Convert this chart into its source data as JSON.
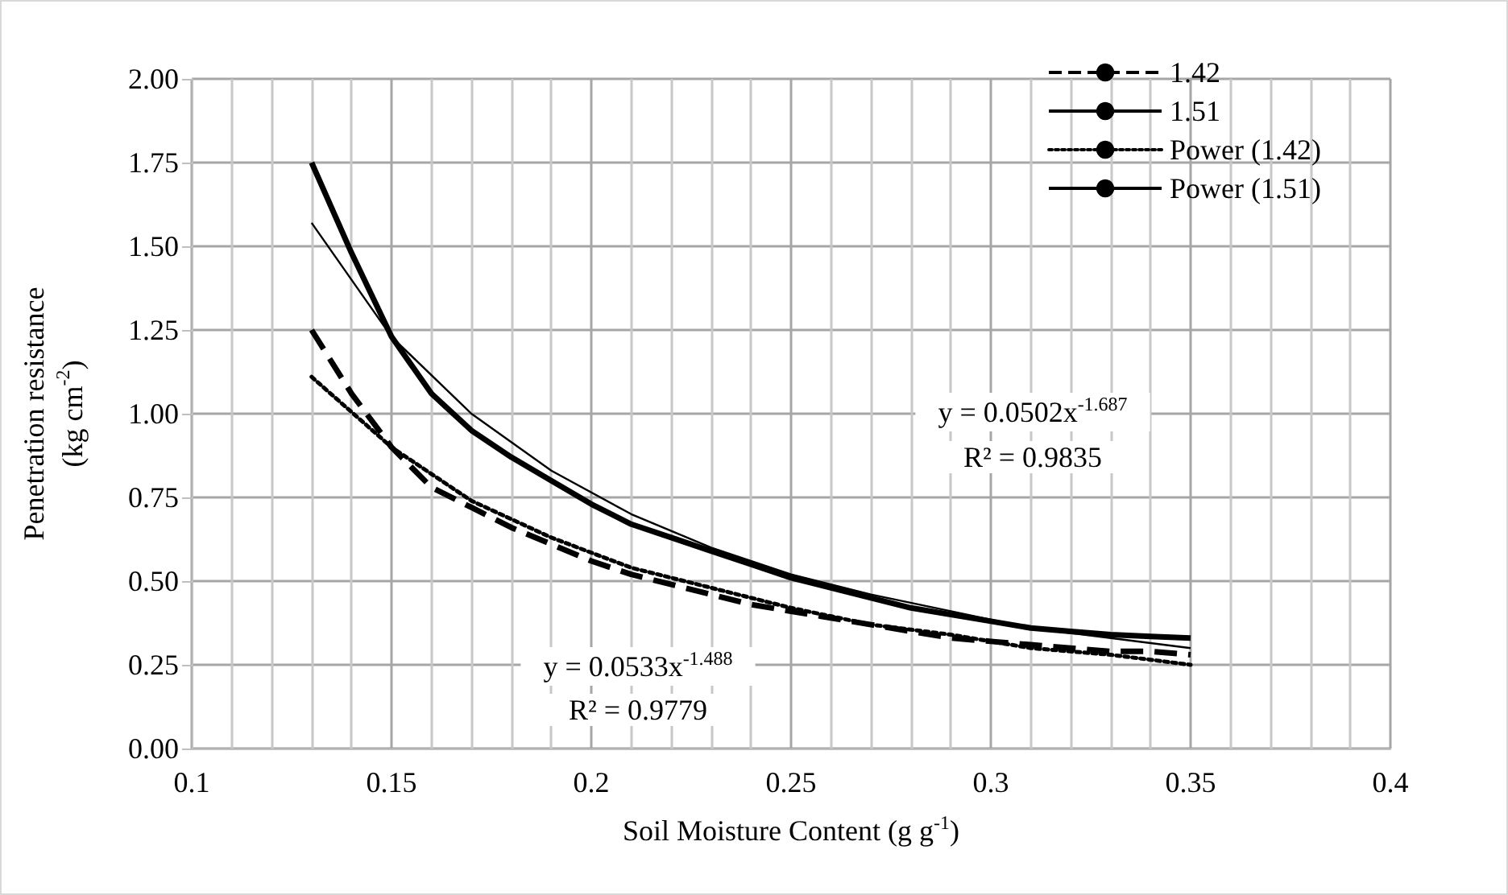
{
  "chart_data": {
    "type": "line",
    "xlabel": "Soil Moisture Content (g g$^{-1}$)",
    "ylabel": "Penetration resistance\n(kg cm$^{-2}$)",
    "x": [
      0.13,
      0.14,
      0.15,
      0.16,
      0.17,
      0.18,
      0.19,
      0.2,
      0.21,
      0.22,
      0.23,
      0.24,
      0.25,
      0.26,
      0.27,
      0.28,
      0.29,
      0.3,
      0.31,
      0.32,
      0.33,
      0.34,
      0.35
    ],
    "series": [
      {
        "name": "1.42",
        "color": "#000000",
        "line_style": "dashed",
        "values": [
          1.25,
          1.06,
          0.9,
          0.78,
          0.72,
          0.66,
          0.61,
          0.56,
          0.52,
          0.49,
          0.46,
          0.43,
          0.41,
          0.39,
          0.37,
          0.35,
          0.33,
          0.32,
          0.31,
          0.3,
          0.29,
          0.29,
          0.28
        ]
      },
      {
        "name": "1.51",
        "color": "#000000",
        "line_style": "solid",
        "values": [
          1.75,
          1.48,
          1.23,
          1.06,
          0.95,
          0.87,
          0.8,
          0.73,
          0.67,
          0.63,
          0.59,
          0.55,
          0.51,
          0.48,
          0.45,
          0.42,
          0.4,
          0.38,
          0.36,
          0.35,
          0.34,
          0.335,
          0.33
        ]
      },
      {
        "name": "Power (1.42)",
        "color": "#000000",
        "line_style": "dotted",
        "x": [
          0.13,
          0.15,
          0.17,
          0.19,
          0.21,
          0.23,
          0.25,
          0.27,
          0.29,
          0.31,
          0.33,
          0.35
        ],
        "values": [
          1.11,
          0.9,
          0.74,
          0.63,
          0.54,
          0.48,
          0.42,
          0.37,
          0.34,
          0.3,
          0.28,
          0.25
        ]
      },
      {
        "name": "Power (1.51)",
        "color": "#000000",
        "line_style": "solid",
        "x": [
          0.13,
          0.15,
          0.17,
          0.19,
          0.21,
          0.23,
          0.25,
          0.27,
          0.29,
          0.31,
          0.33,
          0.35
        ],
        "values": [
          1.57,
          1.23,
          1.0,
          0.83,
          0.7,
          0.6,
          0.52,
          0.46,
          0.41,
          0.36,
          0.33,
          0.3
        ]
      }
    ],
    "xlim": [
      0.1,
      0.4
    ],
    "xticks": [
      0.1,
      0.15,
      0.2,
      0.25,
      0.3,
      0.35,
      0.4
    ],
    "ylim": [
      0,
      2
    ],
    "yticks": [
      {
        "value": 0,
        "label": "0.00"
      },
      {
        "value": 0.25,
        "label": "0.25"
      },
      {
        "value": 0.5,
        "label": "0.50"
      },
      {
        "value": 0.75,
        "label": "0.75"
      },
      {
        "value": 1,
        "label": "1.00"
      },
      {
        "value": 1.25,
        "label": "1.25"
      },
      {
        "value": 1.5,
        "label": "1.50"
      },
      {
        "value": 1.75,
        "label": "1.75"
      },
      {
        "value": 2,
        "label": "2.00"
      }
    ],
    "annotations": [
      "y = 0.0502x$^{-1.687}$",
      "R² = 0.9835",
      "y = 0.0533x$^{-1.488}$",
      "R² = 0.9779"
    ],
    "grid": true,
    "legend": "top right",
    "marker": "none"
  }
}
